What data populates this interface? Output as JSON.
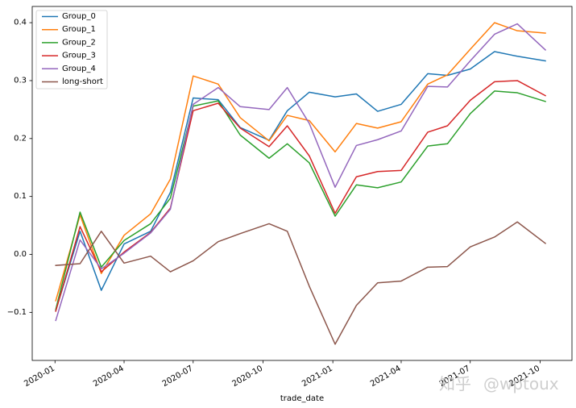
{
  "chart_data": {
    "type": "line",
    "title": "",
    "xlabel": "trade_date",
    "ylabel": "",
    "x": [
      "2020-01-02",
      "2020-02-03",
      "2020-03-02",
      "2020-04-01",
      "2020-05-06",
      "2020-06-01",
      "2020-07-01",
      "2020-08-03",
      "2020-09-01",
      "2020-10-09",
      "2020-11-02",
      "2020-12-01",
      "2021-01-04",
      "2021-02-01",
      "2021-03-01",
      "2021-04-01",
      "2021-05-06",
      "2021-06-01",
      "2021-07-01",
      "2021-08-02",
      "2021-09-01",
      "2021-10-08"
    ],
    "xlim": [
      "2019-12-02",
      "2021-11-12"
    ],
    "ylim": [
      -0.183,
      0.428
    ],
    "xticks": [
      {
        "value": "2020-01-01",
        "label": "2020-01"
      },
      {
        "value": "2020-04-01",
        "label": "2020-04"
      },
      {
        "value": "2020-07-01",
        "label": "2020-07"
      },
      {
        "value": "2020-10-01",
        "label": "2020-10"
      },
      {
        "value": "2021-01-01",
        "label": "2021-01"
      },
      {
        "value": "2021-04-01",
        "label": "2021-04"
      },
      {
        "value": "2021-07-01",
        "label": "2021-07"
      },
      {
        "value": "2021-10-01",
        "label": "2021-10"
      }
    ],
    "yticks": [
      {
        "value": -0.1,
        "label": "−0.1"
      },
      {
        "value": 0.0,
        "label": "0.0"
      },
      {
        "value": 0.1,
        "label": "0.1"
      },
      {
        "value": 0.2,
        "label": "0.2"
      },
      {
        "value": 0.3,
        "label": "0.3"
      },
      {
        "value": 0.4,
        "label": "0.4"
      }
    ],
    "grid": false,
    "legend": {
      "placement": "top-left"
    },
    "series": [
      {
        "name": "Group_0",
        "color": "#1f77b4",
        "values": [
          -0.097,
          0.04,
          -0.062,
          0.018,
          0.04,
          0.107,
          0.27,
          0.267,
          0.219,
          0.197,
          0.248,
          0.28,
          0.272,
          0.277,
          0.247,
          0.259,
          0.312,
          0.309,
          0.32,
          0.35,
          0.342,
          0.334
        ]
      },
      {
        "name": "Group_1",
        "color": "#ff7f0e",
        "values": [
          -0.08,
          0.068,
          -0.033,
          0.033,
          0.07,
          0.13,
          0.308,
          0.294,
          0.236,
          0.196,
          0.24,
          0.231,
          0.177,
          0.226,
          0.218,
          0.229,
          0.294,
          0.31,
          0.354,
          0.4,
          0.386,
          0.382
        ]
      },
      {
        "name": "Group_2",
        "color": "#2ca02c",
        "values": [
          -0.095,
          0.073,
          -0.022,
          0.024,
          0.053,
          0.097,
          0.256,
          0.265,
          0.206,
          0.166,
          0.191,
          0.158,
          0.066,
          0.12,
          0.115,
          0.125,
          0.187,
          0.191,
          0.243,
          0.282,
          0.279,
          0.264
        ]
      },
      {
        "name": "Group_3",
        "color": "#d62728",
        "values": [
          -0.098,
          0.048,
          -0.03,
          0.004,
          0.038,
          0.08,
          0.248,
          0.261,
          0.218,
          0.186,
          0.222,
          0.17,
          0.071,
          0.134,
          0.143,
          0.145,
          0.211,
          0.222,
          0.266,
          0.298,
          0.3,
          0.274
        ]
      },
      {
        "name": "Group_4",
        "color": "#9467bd",
        "values": [
          -0.114,
          0.025,
          -0.025,
          0.002,
          0.037,
          0.078,
          0.259,
          0.288,
          0.255,
          0.25,
          0.288,
          0.226,
          0.116,
          0.188,
          0.198,
          0.213,
          0.29,
          0.289,
          0.334,
          0.38,
          0.398,
          0.353
        ]
      },
      {
        "name": "long-short",
        "color": "#8c564b",
        "values": [
          -0.019,
          -0.016,
          0.04,
          -0.015,
          -0.003,
          -0.03,
          -0.011,
          0.022,
          0.036,
          0.053,
          0.04,
          -0.055,
          -0.155,
          -0.088,
          -0.049,
          -0.046,
          -0.022,
          -0.021,
          0.013,
          0.03,
          0.056,
          0.019
        ]
      }
    ]
  },
  "watermark": {
    "platform": "知乎",
    "handle": "@wptoux"
  }
}
